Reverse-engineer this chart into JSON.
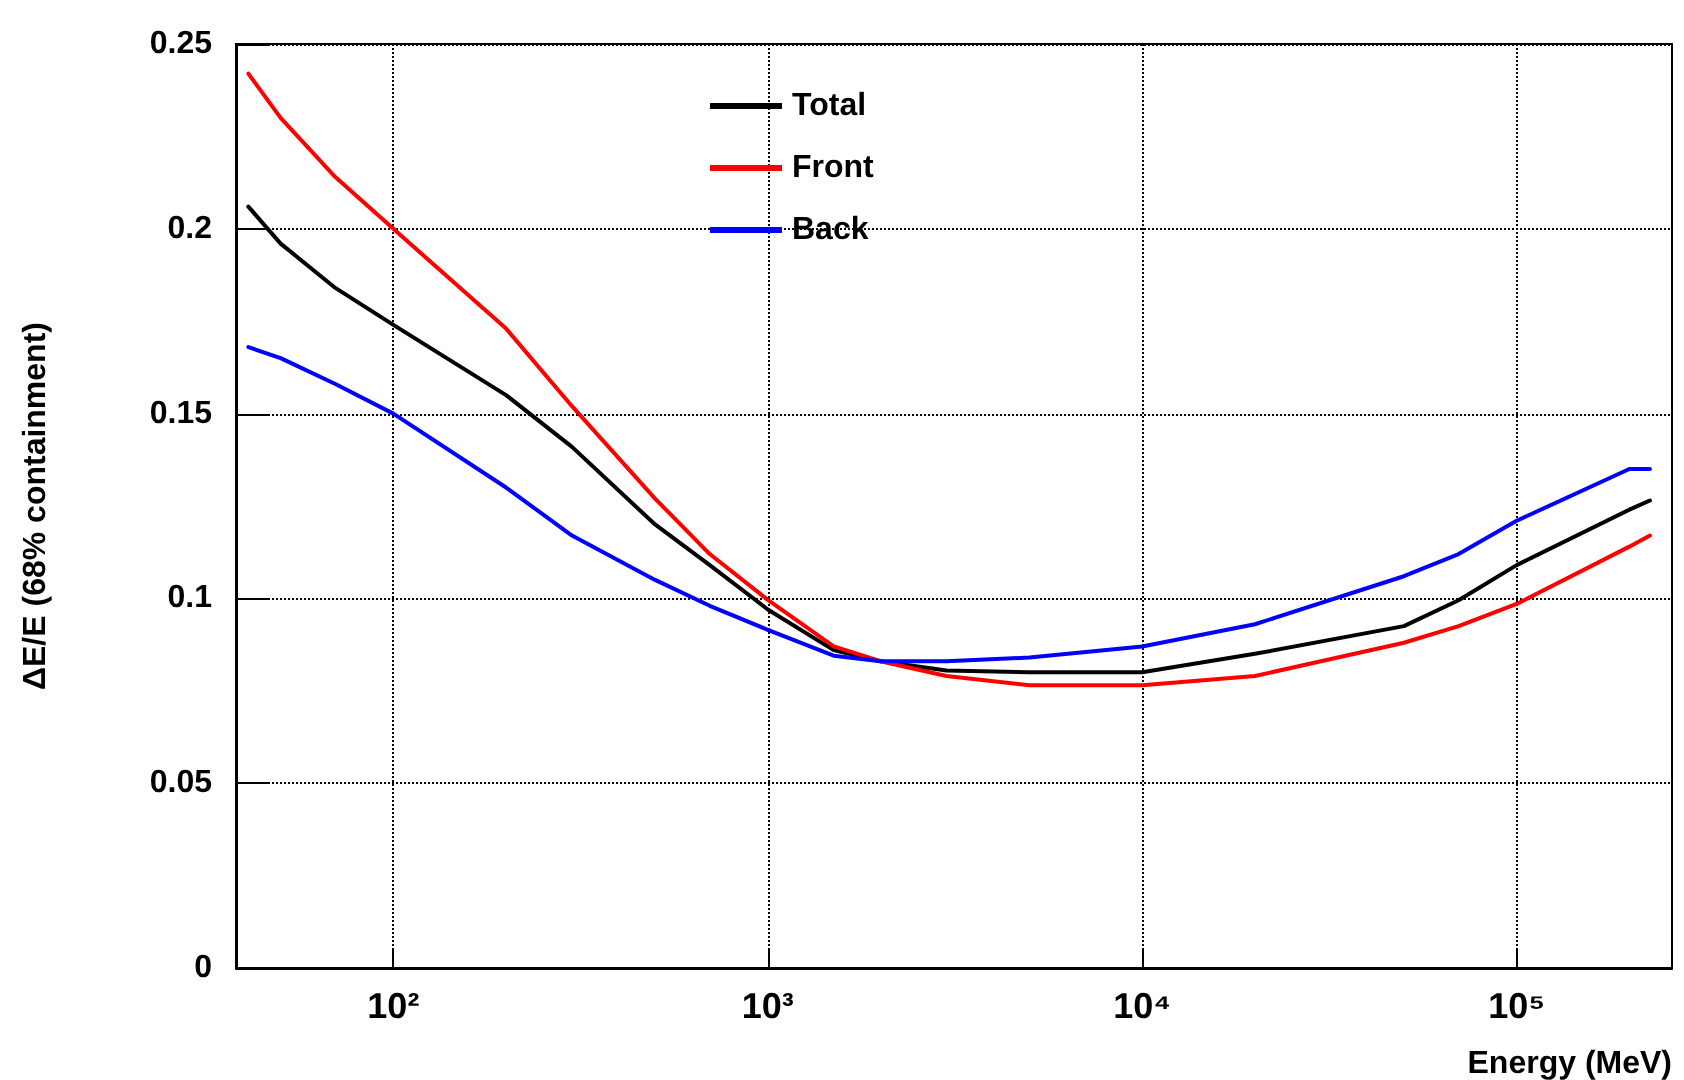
{
  "chart_data": {
    "type": "line",
    "xlabel": "Energy (MeV)",
    "ylabel": "ΔE/E (68% containment)",
    "x": [
      41,
      50,
      70,
      100,
      200,
      300,
      500,
      700,
      1000,
      1500,
      2000,
      3000,
      5000,
      10000,
      20000,
      50000,
      70000,
      100000,
      200000,
      227000
    ],
    "series": [
      {
        "name": "Total",
        "color": "#000000",
        "values": [
          0.206,
          0.196,
          0.184,
          0.174,
          0.155,
          0.141,
          0.12,
          0.109,
          0.097,
          0.086,
          0.083,
          0.0805,
          0.08,
          0.08,
          0.085,
          0.0925,
          0.0995,
          0.109,
          0.124,
          0.1265
        ]
      },
      {
        "name": "Front",
        "color": "#ff0000",
        "values": [
          0.242,
          0.23,
          0.214,
          0.2,
          0.173,
          0.152,
          0.127,
          0.112,
          0.0996,
          0.087,
          0.083,
          0.079,
          0.0765,
          0.0765,
          0.079,
          0.088,
          0.0925,
          0.0985,
          0.114,
          0.117
        ]
      },
      {
        "name": "Back",
        "color": "#0000ff",
        "values": [
          0.168,
          0.165,
          0.158,
          0.15,
          0.13,
          0.117,
          0.105,
          0.098,
          0.0915,
          0.0845,
          0.083,
          0.083,
          0.084,
          0.087,
          0.093,
          0.106,
          0.112,
          0.121,
          0.135,
          0.135
        ]
      }
    ],
    "log": "x",
    "xlim": [
      38,
      260000
    ],
    "xticks": [
      {
        "value": 100,
        "label": "10²"
      },
      {
        "value": 1000,
        "label": "10³"
      },
      {
        "value": 10000,
        "label": "10⁴"
      },
      {
        "value": 100000,
        "label": "10⁵"
      }
    ],
    "ylim": [
      0,
      0.25
    ],
    "yticks": [
      0,
      0.05,
      0.1,
      0.15,
      0.2,
      0.25
    ],
    "grid": true,
    "legend": "top",
    "marker": "none",
    "line_style": "solid"
  }
}
